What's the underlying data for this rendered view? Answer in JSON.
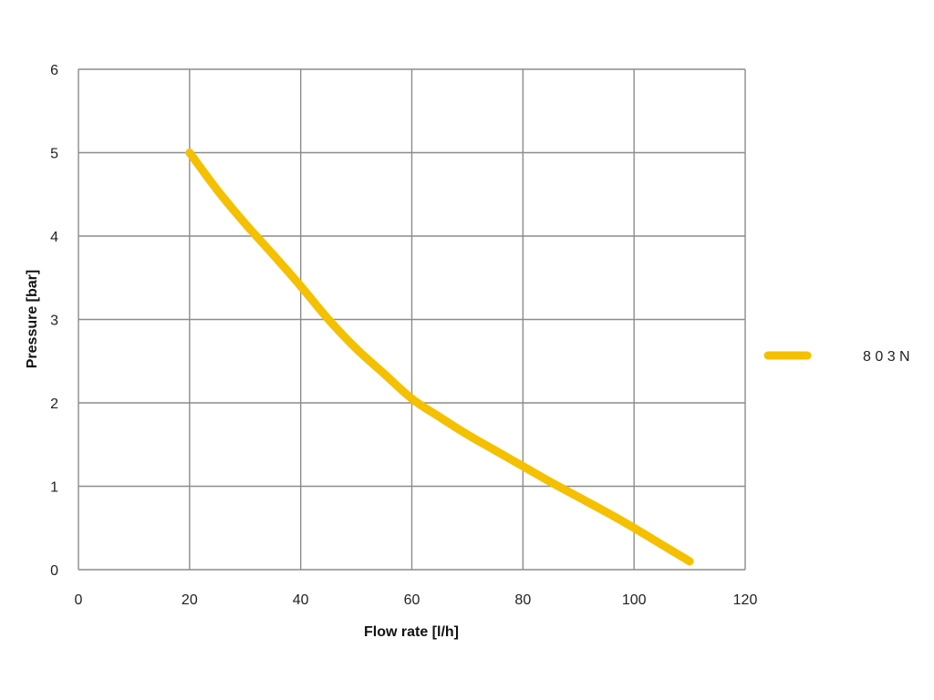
{
  "chart_data": {
    "type": "line",
    "xlabel": "Flow rate [l/h]",
    "ylabel": "Pressure [bar]",
    "xlim": [
      0,
      120
    ],
    "ylim": [
      0,
      6
    ],
    "x_ticks": [
      "0",
      "20",
      "40",
      "60",
      "80",
      "100",
      "120"
    ],
    "y_ticks": [
      "0",
      "1",
      "2",
      "3",
      "4",
      "5",
      "6"
    ],
    "grid": true,
    "legend_position": "right",
    "series": [
      {
        "name": "8 0 3 N",
        "color": "#f5c000",
        "x": [
          20,
          25,
          30,
          35,
          40,
          45,
          50,
          55,
          60,
          65,
          70,
          75,
          80,
          85,
          90,
          95,
          100,
          105,
          110
        ],
        "y": [
          5.0,
          4.55,
          4.15,
          3.78,
          3.4,
          3.0,
          2.65,
          2.35,
          2.05,
          1.83,
          1.62,
          1.43,
          1.24,
          1.05,
          0.87,
          0.69,
          0.5,
          0.3,
          0.1
        ]
      }
    ]
  }
}
